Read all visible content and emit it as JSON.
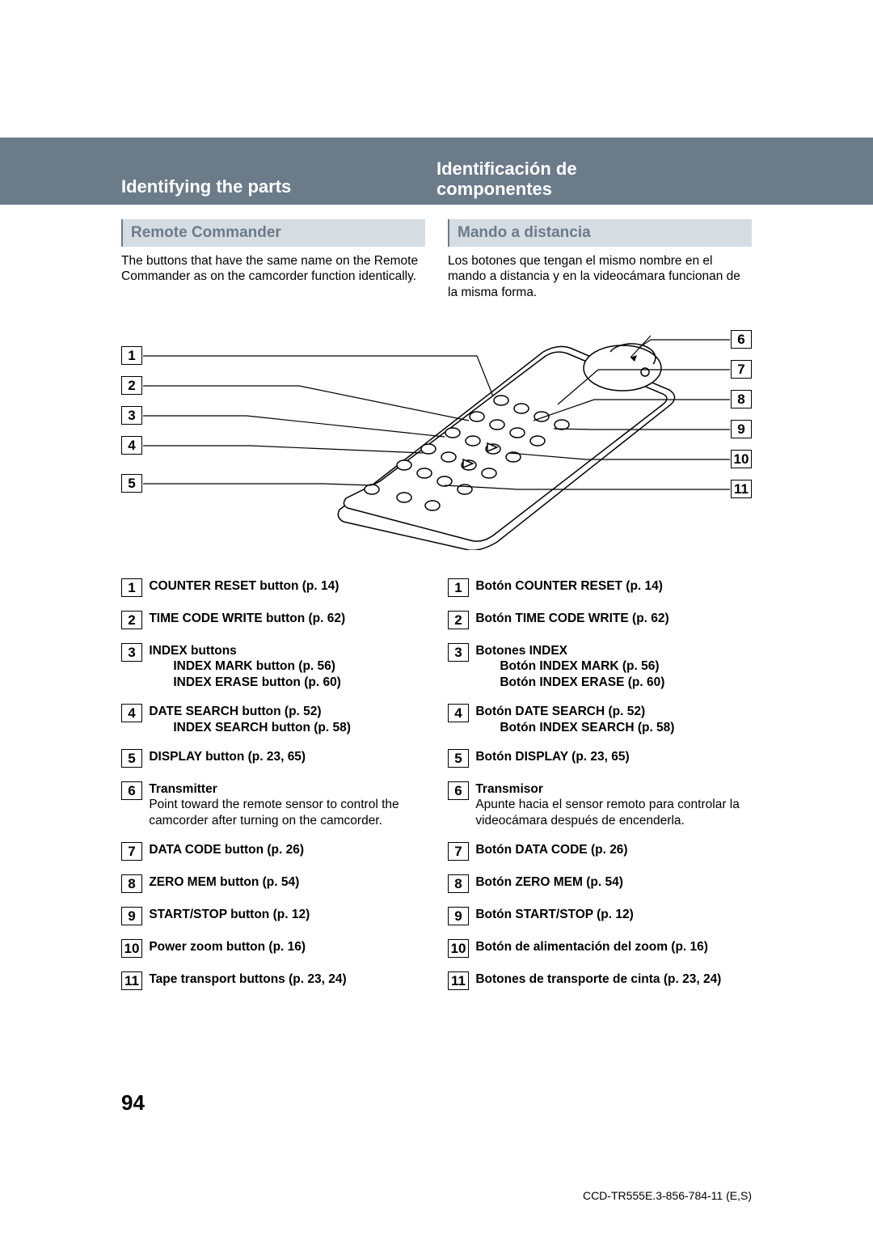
{
  "header": {
    "left_title": "Identifying the parts",
    "right_title_line1": "Identificación de",
    "right_title_line2": "componentes"
  },
  "subheader": {
    "left": "Remote Commander",
    "right": "Mando a distancia"
  },
  "intro": {
    "left": "The buttons that have the same name on the Remote Commander as on the camcorder function identically.",
    "right": "Los botones que tengan el mismo nombre en el mando a distancia y en la videocámara funcionan de la misma forma."
  },
  "callouts": {
    "n1": "1",
    "n2": "2",
    "n3": "3",
    "n4": "4",
    "n5": "5",
    "n6": "6",
    "n7": "7",
    "n8": "8",
    "n9": "9",
    "n10": "10",
    "n11": "11"
  },
  "left_list": [
    {
      "num": "1",
      "bold": "COUNTER RESET button (p. 14)"
    },
    {
      "num": "2",
      "bold": "TIME CODE WRITE button (p. 62)"
    },
    {
      "num": "3",
      "bold": "INDEX buttons",
      "sub1": "INDEX MARK button (p. 56)",
      "sub2": "INDEX ERASE button (p. 60)"
    },
    {
      "num": "4",
      "bold": "DATE SEARCH button (p. 52)",
      "sub1": "INDEX SEARCH button (p. 58)"
    },
    {
      "num": "5",
      "bold": "DISPLAY button (p. 23, 65)"
    },
    {
      "num": "6",
      "bold": "Transmitter",
      "plain": "Point toward the remote sensor to control the camcorder after turning on the camcorder."
    },
    {
      "num": "7",
      "bold": "DATA CODE button (p. 26)"
    },
    {
      "num": "8",
      "bold": "ZERO MEM button (p. 54)"
    },
    {
      "num": "9",
      "bold": "START/STOP button (p. 12)"
    },
    {
      "num": "10",
      "bold": "Power zoom button (p. 16)"
    },
    {
      "num": "11",
      "bold": "Tape transport buttons (p. 23, 24)"
    }
  ],
  "right_list": [
    {
      "num": "1",
      "bold": "Botón COUNTER RESET (p. 14)"
    },
    {
      "num": "2",
      "bold": "Botón TIME CODE WRITE (p. 62)"
    },
    {
      "num": "3",
      "bold": "Botones INDEX",
      "sub1": "Botón INDEX MARK (p. 56)",
      "sub2": "Botón INDEX ERASE (p. 60)"
    },
    {
      "num": "4",
      "bold": "Botón DATE SEARCH (p. 52)",
      "sub1": "Botón INDEX SEARCH (p. 58)"
    },
    {
      "num": "5",
      "bold": "Botón DISPLAY (p. 23, 65)"
    },
    {
      "num": "6",
      "bold": "Transmisor",
      "plain": "Apunte hacia el sensor remoto para controlar la videocámara después de encenderla."
    },
    {
      "num": "7",
      "bold": "Botón DATA CODE (p. 26)"
    },
    {
      "num": "8",
      "bold": "Botón ZERO MEM (p. 54)"
    },
    {
      "num": "9",
      "bold": "Botón START/STOP (p. 12)"
    },
    {
      "num": "10",
      "bold": "Botón de alimentación del zoom (p. 16)"
    },
    {
      "num": "11",
      "bold": "Botones de transporte de cinta (p. 23, 24)"
    }
  ],
  "page_number": "94",
  "footer": "CCD-TR555E.3-856-784-11 (E,S)",
  "colors": {
    "bar_bg": "#6b7b8a",
    "sub_bg": "#d6dde2",
    "sub_fg": "#6b7b8a"
  }
}
